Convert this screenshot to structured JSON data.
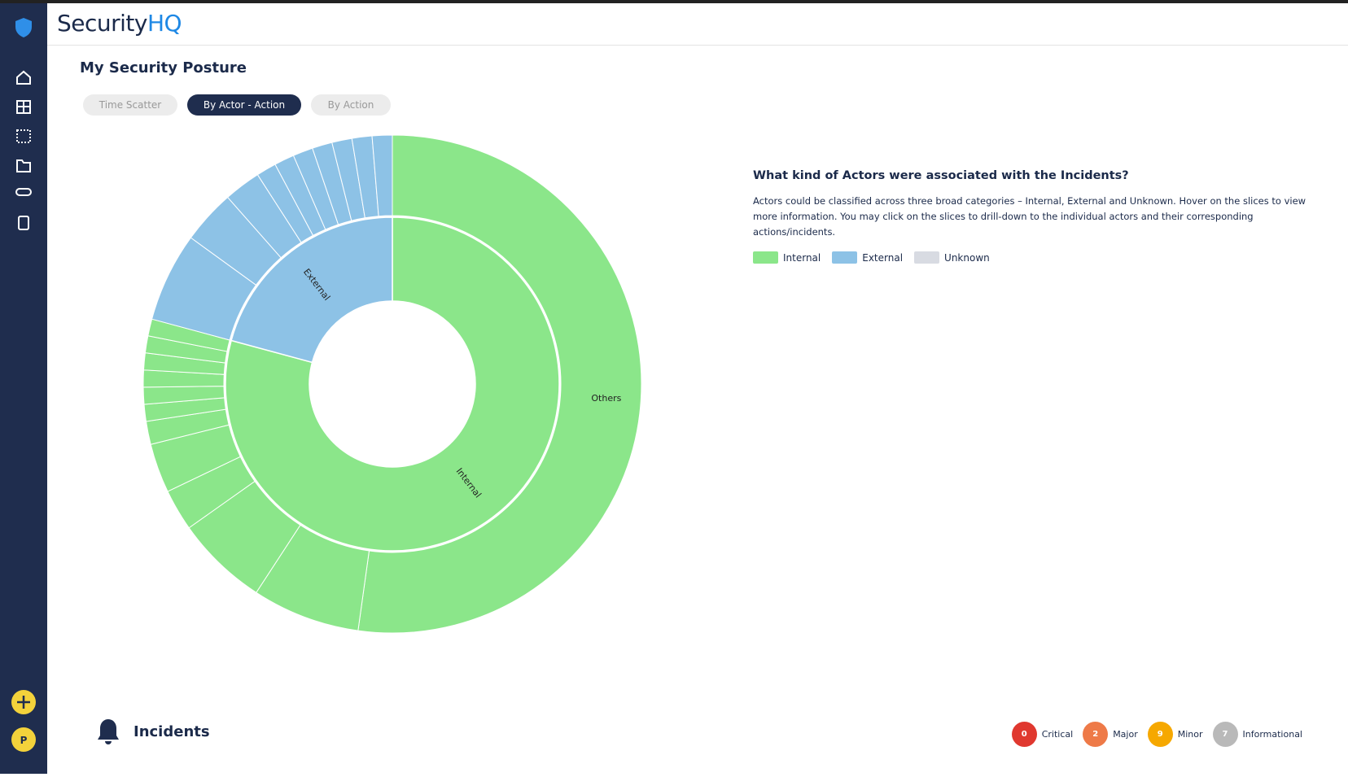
{
  "header": {
    "brand_main": "Security",
    "brand_accent": "HQ"
  },
  "sidebar": {
    "avatar": "P"
  },
  "page": {
    "title": "My Security Posture",
    "tabs": [
      "Time Scatter",
      "By Actor - Action",
      "By Action"
    ],
    "active_tab": 1
  },
  "chart_data": {
    "type": "sunburst",
    "series": [
      {
        "name": "Internal",
        "color": "#8be68a",
        "values": [
          52.2,
          7.0,
          6.0,
          2.7,
          3.2,
          1.5,
          1.1,
          1.1,
          1.1,
          1.1,
          1.1,
          1.1
        ],
        "labels": [
          "Others",
          null,
          null,
          null,
          null,
          null,
          null,
          null,
          null,
          null,
          null,
          null
        ]
      },
      {
        "name": "External",
        "color": "#8dc2e6",
        "values": [
          5.8,
          3.5,
          2.4,
          1.3,
          1.3,
          1.3,
          1.3,
          1.3,
          1.3,
          1.3
        ],
        "labels": [
          null,
          null,
          null,
          null,
          null,
          null,
          null,
          null,
          null,
          null
        ]
      },
      {
        "name": "Unknown",
        "color": "#d8dbe2",
        "values": [],
        "labels": []
      }
    ]
  },
  "info": {
    "heading": "What kind of Actors were associated with the Incidents?",
    "text": "Actors could be classified across three broad categories – Internal, External and Unknown. Hover on the slices to view more information. You may click on the slices to drill-down to the individual actors and their corresponding actions/incidents."
  },
  "incidents": {
    "title": "Incidents",
    "levels": [
      {
        "label": "Critical",
        "count": 0,
        "color": "#e0382f"
      },
      {
        "label": "Major",
        "count": 2,
        "color": "#ee7a48"
      },
      {
        "label": "Minor",
        "count": 9,
        "color": "#f6a800"
      },
      {
        "label": "Informational",
        "count": 7,
        "color": "#b9b9b9"
      }
    ]
  }
}
